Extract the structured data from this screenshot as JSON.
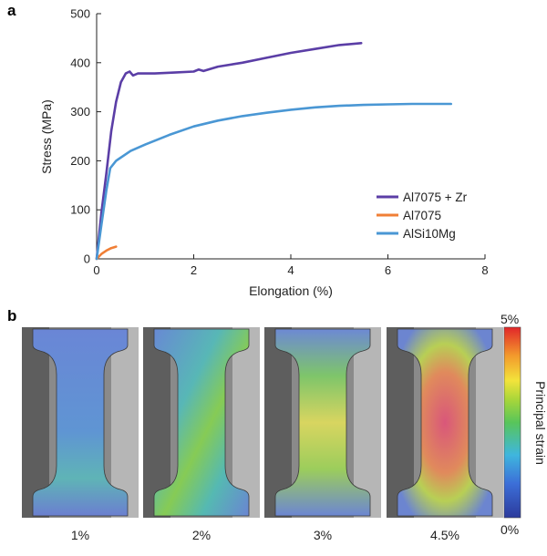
{
  "panels": {
    "a": "a",
    "b": "b"
  },
  "colors": {
    "al7075_zr": "#5b3ea6",
    "al7075": "#f07f36",
    "alsi10mg": "#4a97d4",
    "axis": "#222222",
    "specimen_bg": "#8c8c8c",
    "grip_bg": "#d9d9d9"
  },
  "chart_data": {
    "type": "line",
    "xlabel": "Elongation (%)",
    "ylabel": "Stress (MPa)",
    "xlim": [
      0,
      8
    ],
    "ylim": [
      0,
      500
    ],
    "xticks": [
      "0",
      "2",
      "4",
      "6",
      "8"
    ],
    "yticks": [
      "0",
      "100",
      "200",
      "300",
      "400",
      "500"
    ],
    "grid": false,
    "legend_position": "bottom-right",
    "series": [
      {
        "name": "Al7075 + Zr",
        "color": "#5b3ea6",
        "points": [
          [
            0,
            0
          ],
          [
            0.1,
            95
          ],
          [
            0.2,
            175
          ],
          [
            0.3,
            260
          ],
          [
            0.4,
            320
          ],
          [
            0.5,
            360
          ],
          [
            0.6,
            378
          ],
          [
            0.68,
            382
          ],
          [
            0.75,
            374
          ],
          [
            0.85,
            378
          ],
          [
            1.2,
            378
          ],
          [
            1.6,
            380
          ],
          [
            2.0,
            382
          ],
          [
            2.1,
            386
          ],
          [
            2.2,
            383
          ],
          [
            2.5,
            392
          ],
          [
            3.0,
            400
          ],
          [
            3.5,
            410
          ],
          [
            4.0,
            420
          ],
          [
            4.5,
            428
          ],
          [
            5.0,
            436
          ],
          [
            5.45,
            440
          ]
        ]
      },
      {
        "name": "Al7075",
        "color": "#f07f36",
        "points": [
          [
            0,
            0
          ],
          [
            0.1,
            10
          ],
          [
            0.2,
            17
          ],
          [
            0.3,
            22
          ],
          [
            0.4,
            25
          ]
        ]
      },
      {
        "name": "AlSi10Mg",
        "color": "#4a97d4",
        "points": [
          [
            0,
            0
          ],
          [
            0.1,
            70
          ],
          [
            0.2,
            140
          ],
          [
            0.28,
            185
          ],
          [
            0.4,
            200
          ],
          [
            0.7,
            220
          ],
          [
            1.0,
            233
          ],
          [
            1.5,
            253
          ],
          [
            2.0,
            270
          ],
          [
            2.5,
            282
          ],
          [
            3.0,
            291
          ],
          [
            3.5,
            298
          ],
          [
            4.0,
            304
          ],
          [
            4.5,
            309
          ],
          [
            5.0,
            312
          ],
          [
            5.5,
            314
          ],
          [
            6.0,
            315
          ],
          [
            6.5,
            316
          ],
          [
            7.0,
            316
          ],
          [
            7.3,
            316
          ]
        ]
      }
    ]
  },
  "strain_maps": {
    "captions": [
      "1%",
      "2%",
      "3%",
      "4.5%"
    ],
    "levels": [
      0.01,
      0.02,
      0.03,
      0.045
    ],
    "colorbar": {
      "title": "Principal strain",
      "max_label": "5%",
      "min_label": "0%",
      "max": 0.05,
      "min": 0
    }
  }
}
